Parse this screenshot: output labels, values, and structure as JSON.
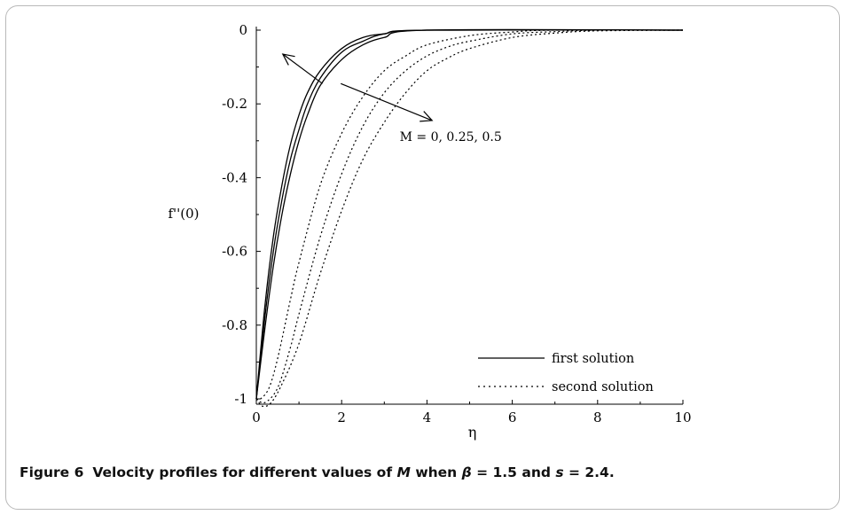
{
  "chart_data": {
    "type": "line",
    "xlabel": "η",
    "ylabel": "f''(0)",
    "xlim": [
      0,
      10
    ],
    "ylim": [
      -1.02,
      0
    ],
    "xticks": [
      "0",
      "2",
      "4",
      "6",
      "8",
      "10"
    ],
    "yticks": [
      "0",
      "-0.2",
      "-0.4",
      "-0.6",
      "-0.8",
      "-1"
    ],
    "annotation": "M = 0, 0.25, 0.5",
    "legend": {
      "placement": "bottom-right",
      "entries": [
        "first solution",
        "second solution"
      ]
    },
    "series": [
      {
        "group": "first solution",
        "style": "solid",
        "M": 0,
        "x": [
          0,
          0.2,
          0.4,
          0.6,
          0.8,
          1.0,
          1.2,
          1.5,
          2.0,
          2.5,
          3.0,
          4.0,
          10
        ],
        "values": [
          -1,
          -0.75,
          -0.56,
          -0.42,
          -0.31,
          -0.23,
          -0.17,
          -0.11,
          -0.05,
          -0.02,
          -0.01,
          0,
          0
        ]
      },
      {
        "group": "first solution",
        "style": "solid",
        "M": 0.25,
        "x": [
          0,
          0.2,
          0.4,
          0.6,
          0.8,
          1.0,
          1.2,
          1.5,
          2.0,
          2.5,
          3.0,
          4.0,
          10
        ],
        "values": [
          -1,
          -0.78,
          -0.6,
          -0.46,
          -0.35,
          -0.27,
          -0.2,
          -0.13,
          -0.06,
          -0.03,
          -0.01,
          0,
          0
        ]
      },
      {
        "group": "first solution",
        "style": "solid",
        "M": 0.5,
        "x": [
          0,
          0.2,
          0.4,
          0.6,
          0.8,
          1.0,
          1.2,
          1.5,
          2.0,
          2.5,
          3.0,
          4.0,
          10
        ],
        "values": [
          -1,
          -0.81,
          -0.64,
          -0.5,
          -0.39,
          -0.3,
          -0.23,
          -0.15,
          -0.08,
          -0.04,
          -0.02,
          0,
          0
        ]
      },
      {
        "group": "second solution",
        "style": "dotted",
        "M": 0,
        "x": [
          0,
          0.1,
          0.3,
          0.5,
          0.8,
          1.0,
          1.5,
          2.0,
          2.5,
          3.0,
          3.5,
          4.0,
          5.0,
          6.0,
          7.0,
          10
        ],
        "values": [
          -1,
          -1,
          -0.97,
          -0.89,
          -0.73,
          -0.63,
          -0.42,
          -0.28,
          -0.18,
          -0.11,
          -0.07,
          -0.04,
          -0.015,
          -0.005,
          0,
          0
        ]
      },
      {
        "group": "second solution",
        "style": "dotted",
        "M": 0.25,
        "x": [
          0,
          0.2,
          0.5,
          0.8,
          1.0,
          1.5,
          2.0,
          2.5,
          3.0,
          3.5,
          4.0,
          4.5,
          5.0,
          6.0,
          7.0,
          8.0,
          10
        ],
        "values": [
          -1,
          -1.01,
          -0.97,
          -0.86,
          -0.77,
          -0.56,
          -0.39,
          -0.26,
          -0.17,
          -0.11,
          -0.07,
          -0.045,
          -0.03,
          -0.01,
          -0.004,
          0,
          0
        ]
      },
      {
        "group": "second solution",
        "style": "dotted",
        "M": 0.5,
        "x": [
          0,
          0.15,
          0.35,
          0.6,
          1.0,
          1.5,
          2.0,
          2.5,
          3.0,
          3.5,
          4.0,
          4.5,
          5.0,
          6.0,
          7.0,
          8.0,
          10
        ],
        "values": [
          -1,
          -1.02,
          -1.01,
          -0.96,
          -0.85,
          -0.66,
          -0.49,
          -0.35,
          -0.25,
          -0.17,
          -0.11,
          -0.075,
          -0.05,
          -0.02,
          -0.008,
          -0.002,
          0
        ]
      }
    ]
  },
  "caption": {
    "label": "Figure 6",
    "text_parts": [
      "Velocity profiles for different values of ",
      "M",
      " when ",
      "β",
      " = 1.5 and ",
      "s",
      " = 2.4."
    ]
  }
}
